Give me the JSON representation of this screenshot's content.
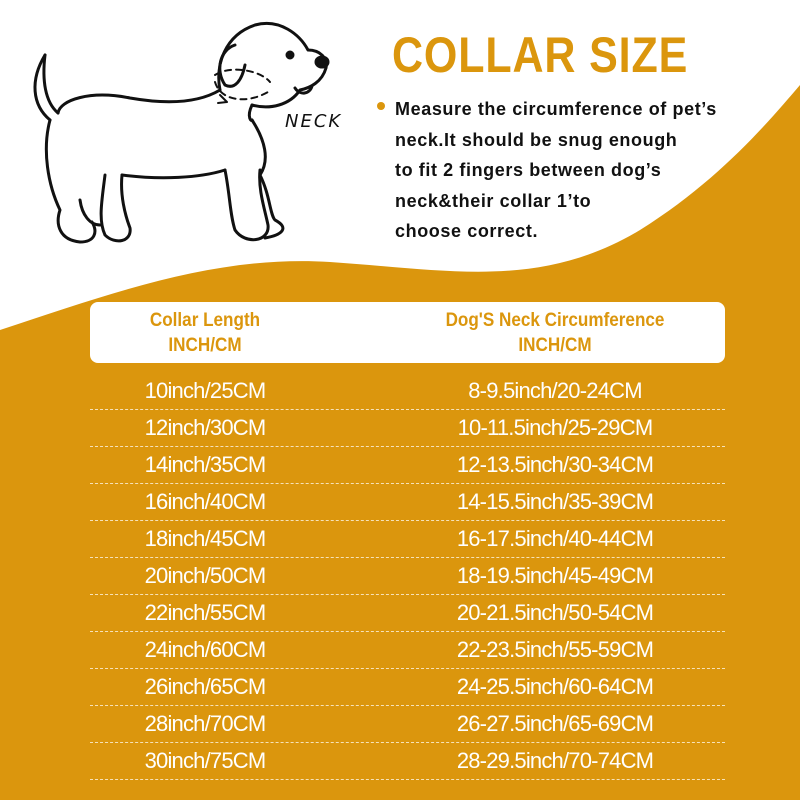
{
  "colors": {
    "accent": "#DB960D",
    "text": "#111111",
    "background": "#FFFFFF"
  },
  "title": "COLLAR SIZE",
  "illustration": {
    "label": "NECK",
    "icon": "dog-line-drawing"
  },
  "instructions": [
    "Measure the circumference of pet’s",
    "neck.It should be snug enough",
    "to fit 2 fingers between dog’s",
    "neck&their collar 1’to",
    "choose correct."
  ],
  "table": {
    "headers": [
      {
        "line1": "Collar Length",
        "line2": "INCH/CM"
      },
      {
        "line1": "Dog'S Neck Circumference",
        "line2": "INCH/CM"
      }
    ],
    "rows": [
      [
        "10inch/25CM",
        "8-9.5inch/20-24CM"
      ],
      [
        "12inch/30CM",
        "10-11.5inch/25-29CM"
      ],
      [
        "14inch/35CM",
        "12-13.5inch/30-34CM"
      ],
      [
        "16inch/40CM",
        "14-15.5inch/35-39CM"
      ],
      [
        "18inch/45CM",
        "16-17.5inch/40-44CM"
      ],
      [
        "20inch/50CM",
        "18-19.5inch/45-49CM"
      ],
      [
        "22inch/55CM",
        "20-21.5inch/50-54CM"
      ],
      [
        "24inch/60CM",
        "22-23.5inch/55-59CM"
      ],
      [
        "26inch/65CM",
        "24-25.5inch/60-64CM"
      ],
      [
        "28inch/70CM",
        "26-27.5inch/65-69CM"
      ],
      [
        "30inch/75CM",
        "28-29.5inch/70-74CM"
      ]
    ]
  }
}
